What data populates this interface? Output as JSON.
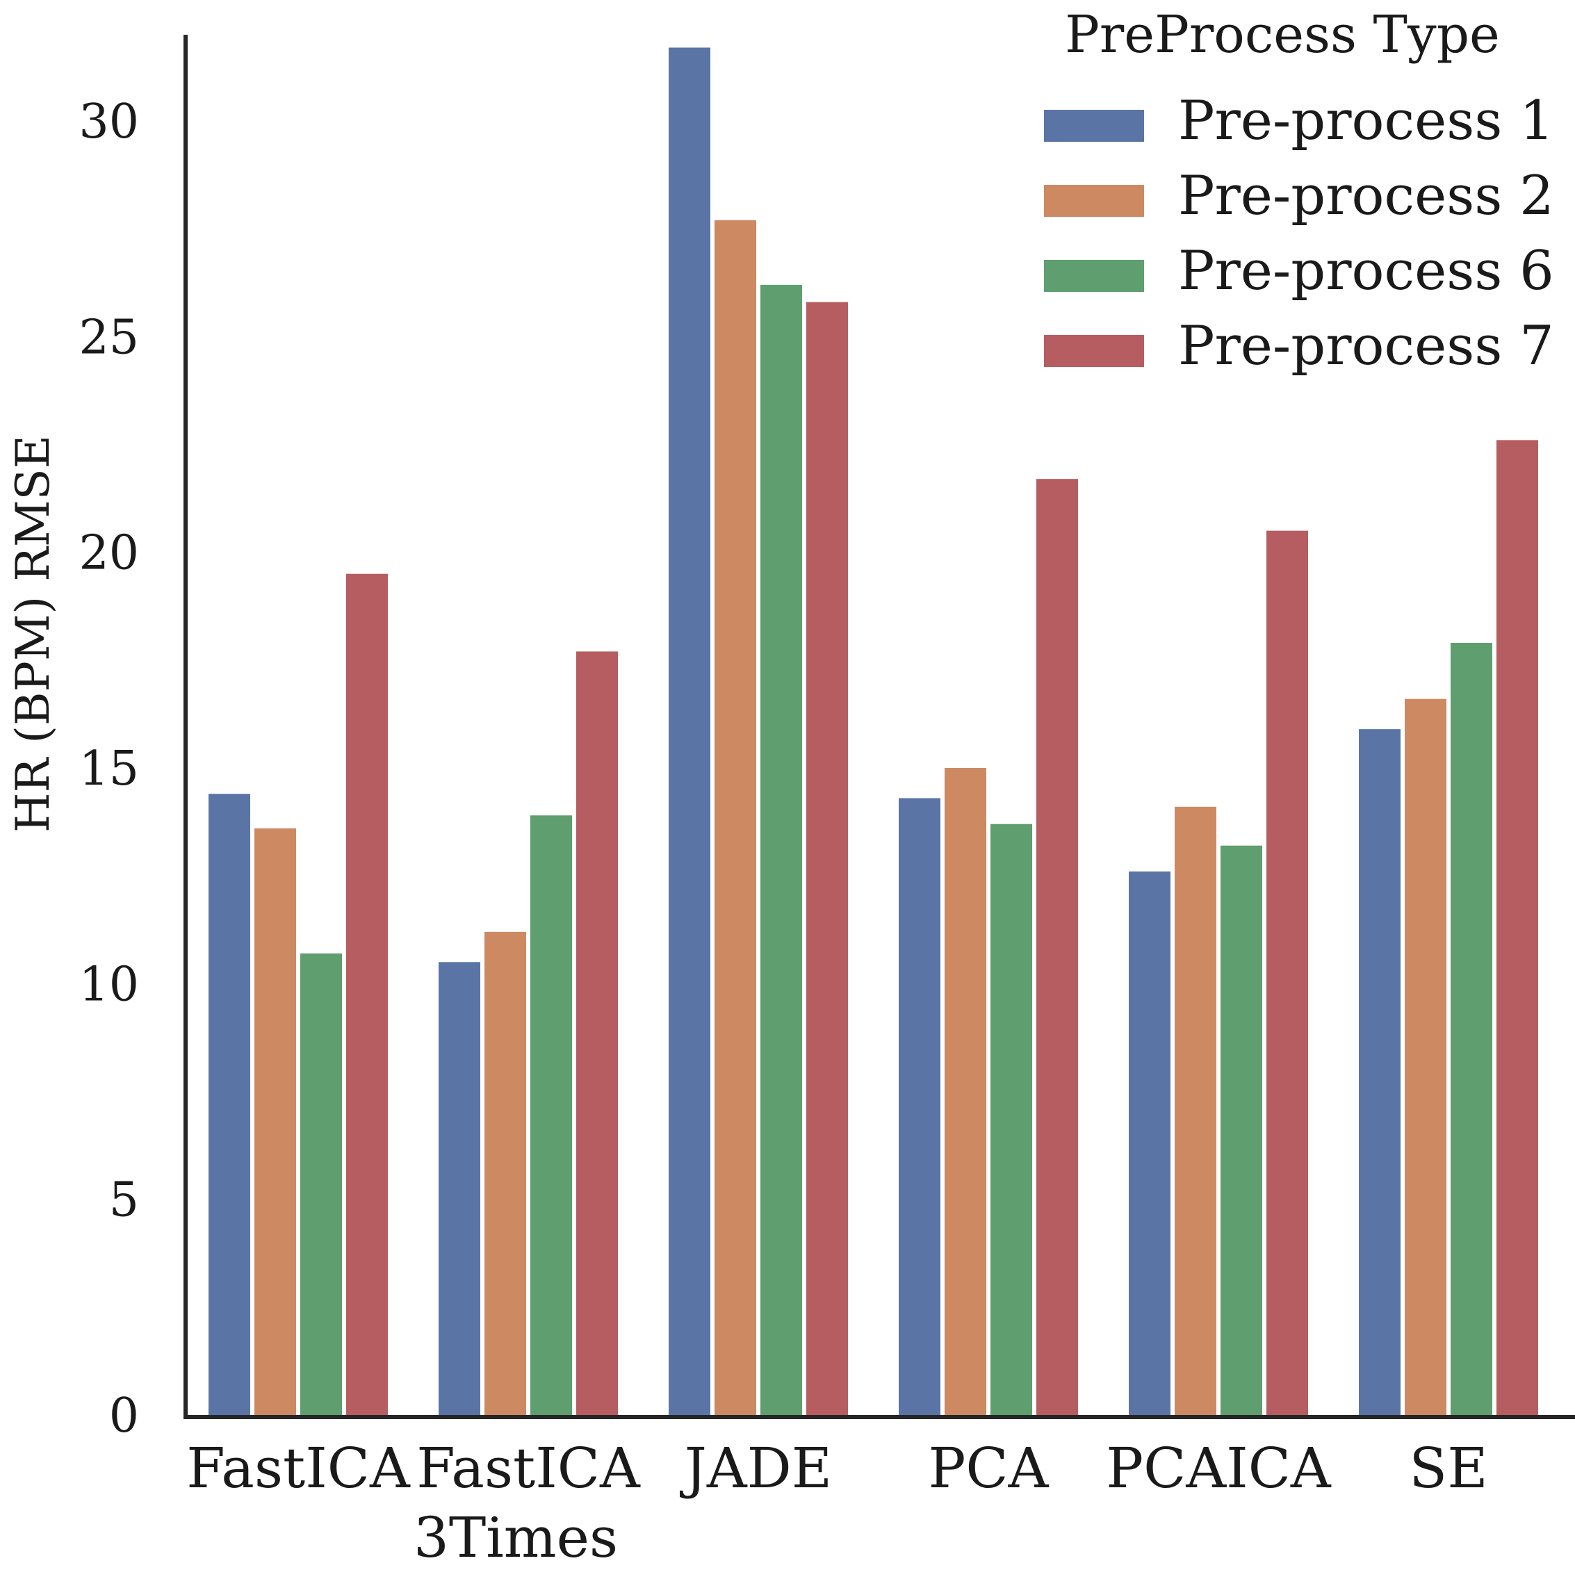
{
  "chart_data": {
    "type": "bar",
    "title": "",
    "xlabel": "",
    "ylabel": "HR (BPM) RMSE",
    "ylim": [
      0,
      32.5
    ],
    "yticks": [
      0,
      5,
      10,
      15,
      20,
      25,
      30
    ],
    "grid": false,
    "categories": [
      [
        "FastICA"
      ],
      [
        "FastICA",
        "3Times"
      ],
      [
        "JADE"
      ],
      [
        "PCA"
      ],
      [
        "PCAICA"
      ],
      [
        "SE"
      ]
    ],
    "legend": {
      "title": "PreProcess Type",
      "position": "top-right"
    },
    "series": [
      {
        "name": "Pre-process 1",
        "color": "#5a74a5",
        "values": [
          14.4,
          10.5,
          31.7,
          14.3,
          12.6,
          15.9
        ]
      },
      {
        "name": "Pre-process 2",
        "color": "#cc8962",
        "values": [
          13.6,
          11.2,
          27.7,
          15.0,
          14.1,
          16.6
        ]
      },
      {
        "name": "Pre-process 6",
        "color": "#5f9e6e",
        "values": [
          10.7,
          13.9,
          26.2,
          13.7,
          13.2,
          17.9
        ]
      },
      {
        "name": "Pre-process 7",
        "color": "#b65d61",
        "values": [
          19.5,
          17.7,
          25.8,
          21.7,
          20.5,
          22.6
        ]
      }
    ]
  }
}
